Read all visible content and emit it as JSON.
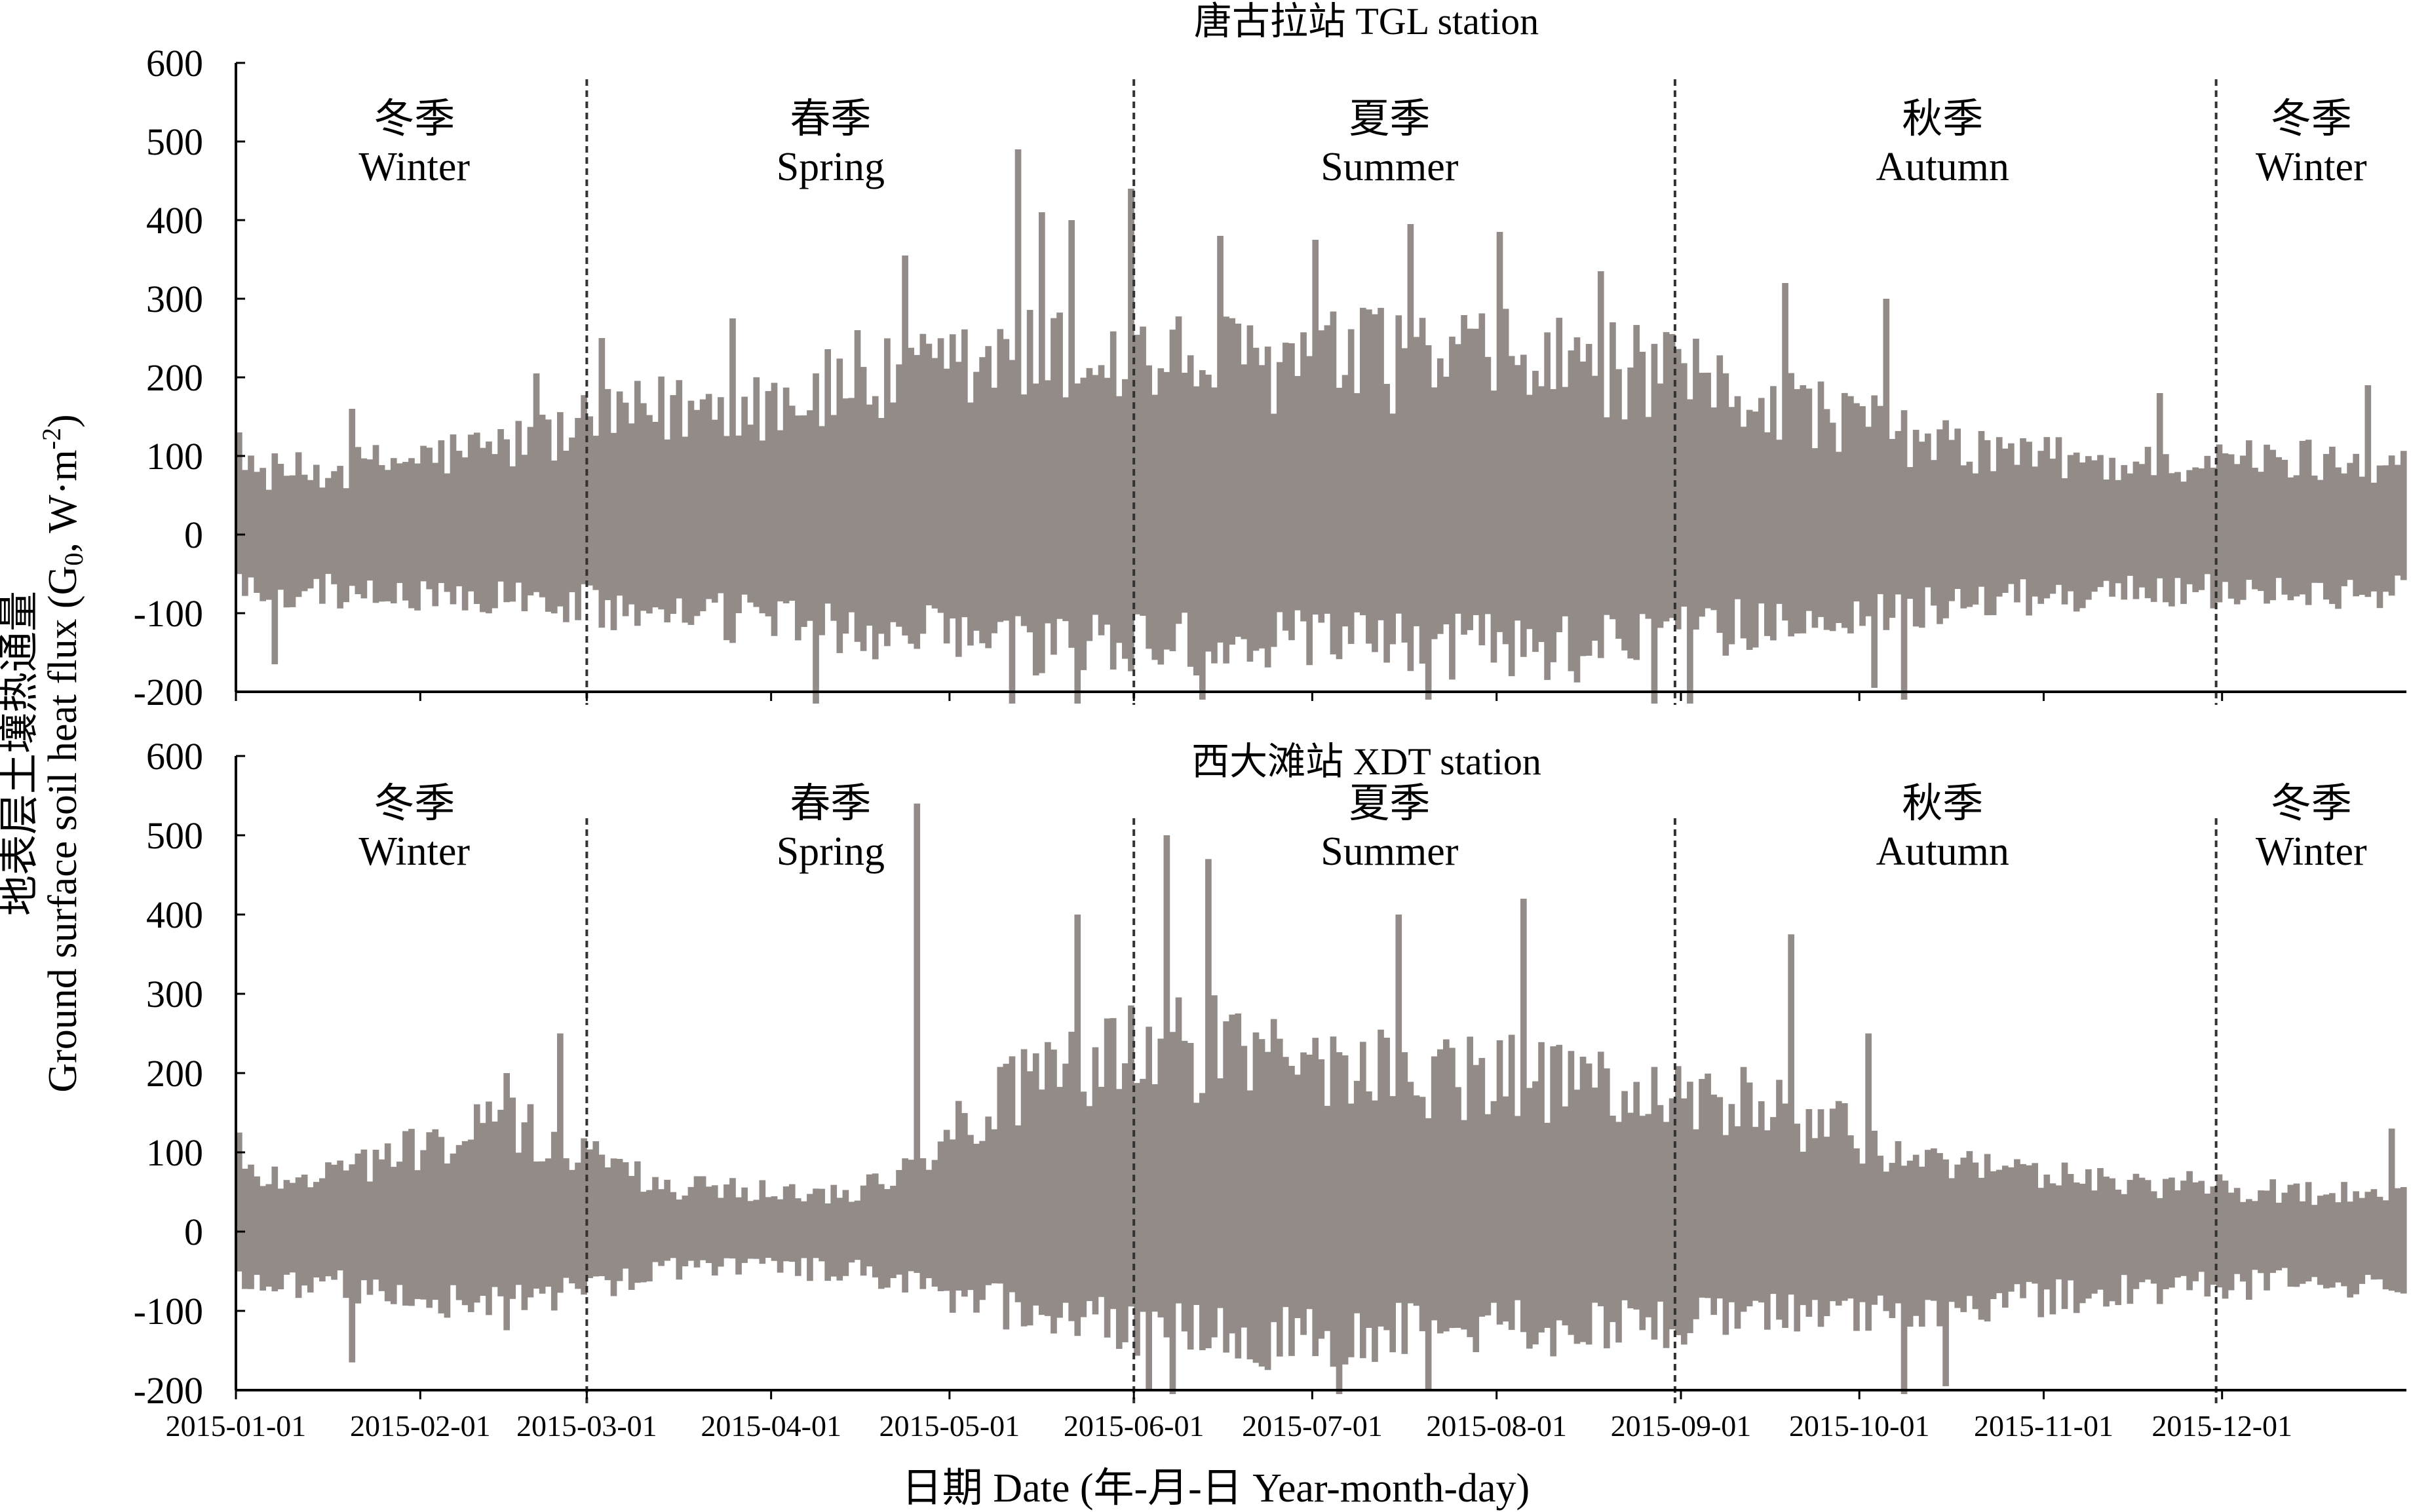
{
  "figure": {
    "xlabel": "日期 Date (年-月-日 Year-month-day)",
    "ylabel_line1": "地表层土壤热通量",
    "ylabel_line2_prefix": "Ground surface soil heat flux (G",
    "ylabel_line2_sub": "0",
    "ylabel_line2_mid": ", W·m",
    "ylabel_line2_sup": "-2",
    "ylabel_line2_suffix": ")",
    "bar_color": "#928b87",
    "divider_color": "#333333"
  },
  "chart_data": [
    {
      "type": "bar",
      "title": "唐古拉站 TGL station",
      "ylim": [
        -200,
        600
      ],
      "yticks": [
        "600",
        "500",
        "400",
        "300",
        "200",
        "100",
        "0",
        "-100",
        "-200"
      ],
      "yticks_values": [
        600,
        500,
        400,
        300,
        200,
        100,
        0,
        -100,
        -200
      ],
      "x_range": [
        "2015-01-01",
        "2015-12-31"
      ],
      "season_dividers": [
        "2015-03-01",
        "2015-06-01",
        "2015-08-31",
        "2015-11-30"
      ],
      "seasons": [
        {
          "cn": "冬季",
          "en": "Winter",
          "center_date": "2015-01-31"
        },
        {
          "cn": "春季",
          "en": "Spring",
          "center_date": "2015-04-11"
        },
        {
          "cn": "夏季",
          "en": "Summer",
          "center_date": "2015-07-14"
        },
        {
          "cn": "秋季",
          "en": "Autumn",
          "center_date": "2015-10-15"
        },
        {
          "cn": "冬季",
          "en": "Winter",
          "center_date": "2015-12-16"
        }
      ],
      "envelope_monthly": [
        {
          "date": "2015-01-15",
          "max": 100,
          "min": -90
        },
        {
          "date": "2015-02-15",
          "max": 140,
          "min": -100
        },
        {
          "date": "2015-03-15",
          "max": 200,
          "min": -130
        },
        {
          "date": "2015-04-15",
          "max": 230,
          "min": -150
        },
        {
          "date": "2015-05-15",
          "max": 280,
          "min": -180
        },
        {
          "date": "2015-06-15",
          "max": 270,
          "min": -170
        },
        {
          "date": "2015-07-15",
          "max": 280,
          "min": -180
        },
        {
          "date": "2015-08-15",
          "max": 270,
          "min": -180
        },
        {
          "date": "2015-09-15",
          "max": 220,
          "min": -140
        },
        {
          "date": "2015-10-15",
          "max": 140,
          "min": -110
        },
        {
          "date": "2015-11-15",
          "max": 110,
          "min": -90
        },
        {
          "date": "2015-12-15",
          "max": 120,
          "min": -90
        }
      ],
      "peaks": [
        {
          "date": "2015-01-01",
          "value": 130
        },
        {
          "date": "2015-01-20",
          "value": 160
        },
        {
          "date": "2015-02-20",
          "value": 205
        },
        {
          "date": "2015-03-03",
          "value": 250
        },
        {
          "date": "2015-03-25",
          "value": 275
        },
        {
          "date": "2015-04-15",
          "value": 260
        },
        {
          "date": "2015-04-23",
          "value": 355
        },
        {
          "date": "2015-05-12",
          "value": 490
        },
        {
          "date": "2015-05-16",
          "value": 410
        },
        {
          "date": "2015-05-21",
          "value": 400
        },
        {
          "date": "2015-05-31",
          "value": 440
        },
        {
          "date": "2015-06-15",
          "value": 380
        },
        {
          "date": "2015-07-01",
          "value": 375
        },
        {
          "date": "2015-07-17",
          "value": 395
        },
        {
          "date": "2015-08-01",
          "value": 385
        },
        {
          "date": "2015-08-18",
          "value": 335
        },
        {
          "date": "2015-09-18",
          "value": 320
        },
        {
          "date": "2015-10-05",
          "value": 300
        },
        {
          "date": "2015-11-20",
          "value": 180
        },
        {
          "date": "2015-12-25",
          "value": 190
        }
      ],
      "troughs": [
        {
          "date": "2015-01-07",
          "value": -165
        },
        {
          "date": "2015-04-08",
          "value": -215
        },
        {
          "date": "2015-05-11",
          "value": -215
        },
        {
          "date": "2015-05-22",
          "value": -215
        },
        {
          "date": "2015-06-12",
          "value": -210
        },
        {
          "date": "2015-07-20",
          "value": -210
        },
        {
          "date": "2015-08-27",
          "value": -215
        },
        {
          "date": "2015-09-02",
          "value": -215
        },
        {
          "date": "2015-10-03",
          "value": -195
        },
        {
          "date": "2015-10-08",
          "value": -210
        }
      ]
    },
    {
      "type": "bar",
      "title": "西大滩站 XDT station",
      "ylim": [
        -200,
        600
      ],
      "yticks": [
        "600",
        "500",
        "400",
        "300",
        "200",
        "100",
        "0",
        "-100",
        "-200"
      ],
      "yticks_values": [
        600,
        500,
        400,
        300,
        200,
        100,
        0,
        -100,
        -200
      ],
      "x_range": [
        "2015-01-01",
        "2015-12-31"
      ],
      "season_dividers": [
        "2015-03-01",
        "2015-06-01",
        "2015-08-31",
        "2015-11-30"
      ],
      "seasons": [
        {
          "cn": "冬季",
          "en": "Winter",
          "center_date": "2015-01-31"
        },
        {
          "cn": "春季",
          "en": "Spring",
          "center_date": "2015-04-11"
        },
        {
          "cn": "夏季",
          "en": "Summer",
          "center_date": "2015-07-14"
        },
        {
          "cn": "秋季",
          "en": "Autumn",
          "center_date": "2015-10-15"
        },
        {
          "cn": "冬季",
          "en": "Winter",
          "center_date": "2015-12-16"
        }
      ],
      "envelope_monthly": [
        {
          "date": "2015-01-15",
          "max": 90,
          "min": -80
        },
        {
          "date": "2015-02-15",
          "max": 170,
          "min": -120
        },
        {
          "date": "2015-03-15",
          "max": 70,
          "min": -60
        },
        {
          "date": "2015-04-15",
          "max": 60,
          "min": -60
        },
        {
          "date": "2015-05-15",
          "max": 240,
          "min": -130
        },
        {
          "date": "2015-06-15",
          "max": 300,
          "min": -170
        },
        {
          "date": "2015-07-15",
          "max": 250,
          "min": -160
        },
        {
          "date": "2015-08-15",
          "max": 230,
          "min": -150
        },
        {
          "date": "2015-09-15",
          "max": 200,
          "min": -130
        },
        {
          "date": "2015-10-15",
          "max": 100,
          "min": -120
        },
        {
          "date": "2015-11-15",
          "max": 80,
          "min": -90
        },
        {
          "date": "2015-12-15",
          "max": 60,
          "min": -80
        }
      ],
      "peaks": [
        {
          "date": "2015-01-01",
          "value": 125
        },
        {
          "date": "2015-02-15",
          "value": 200
        },
        {
          "date": "2015-02-24",
          "value": 250
        },
        {
          "date": "2015-04-25",
          "value": 540
        },
        {
          "date": "2015-05-22",
          "value": 400
        },
        {
          "date": "2015-06-06",
          "value": 500
        },
        {
          "date": "2015-06-13",
          "value": 470
        },
        {
          "date": "2015-07-15",
          "value": 400
        },
        {
          "date": "2015-08-05",
          "value": 420
        },
        {
          "date": "2015-09-19",
          "value": 375
        },
        {
          "date": "2015-10-02",
          "value": 250
        },
        {
          "date": "2015-12-29",
          "value": 130
        }
      ],
      "troughs": [
        {
          "date": "2015-01-20",
          "value": -165
        },
        {
          "date": "2015-06-03",
          "value": -200
        },
        {
          "date": "2015-06-07",
          "value": -205
        },
        {
          "date": "2015-07-05",
          "value": -205
        },
        {
          "date": "2015-07-20",
          "value": -200
        },
        {
          "date": "2015-10-08",
          "value": -205
        },
        {
          "date": "2015-10-15",
          "value": -195
        }
      ]
    }
  ],
  "x_tick_labels": [
    "2015-01-01",
    "2015-02-01",
    "2015-03-01",
    "2015-04-01",
    "2015-05-01",
    "2015-06-01",
    "2015-07-01",
    "2015-08-01",
    "2015-09-01",
    "2015-10-01",
    "2015-11-01",
    "2015-12-01"
  ]
}
